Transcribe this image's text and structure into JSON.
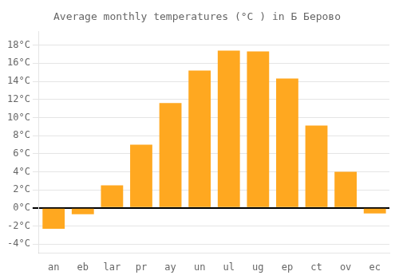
{
  "chart_data": {
    "type": "bar",
    "title": "Average monthly temperatures (°C ) in Б Берово",
    "categories": [
      "an",
      "eb",
      "lar",
      "pr",
      "ay",
      "un",
      "ul",
      "ug",
      "ep",
      "ct",
      "ov",
      "ec"
    ],
    "values": [
      -2.3,
      -0.7,
      2.5,
      7.0,
      11.6,
      15.2,
      17.4,
      17.3,
      14.3,
      9.1,
      4.0,
      -0.6
    ],
    "color": "#FFA820",
    "ylim": [
      -5.0,
      19.5
    ],
    "yticks": [
      {
        "value": -4,
        "label": "-4°C"
      },
      {
        "value": -2,
        "label": "-2°C"
      },
      {
        "value": 0,
        "label": "0°C"
      },
      {
        "value": 2,
        "label": "2°C"
      },
      {
        "value": 4,
        "label": "4°C"
      },
      {
        "value": 6,
        "label": "6°C"
      },
      {
        "value": 8,
        "label": "8°C"
      },
      {
        "value": 10,
        "label": "10°C"
      },
      {
        "value": 12,
        "label": "12°C"
      },
      {
        "value": 14,
        "label": "14°C"
      },
      {
        "value": 16,
        "label": "16°C"
      },
      {
        "value": 18,
        "label": "18°C"
      }
    ],
    "grid": true
  }
}
